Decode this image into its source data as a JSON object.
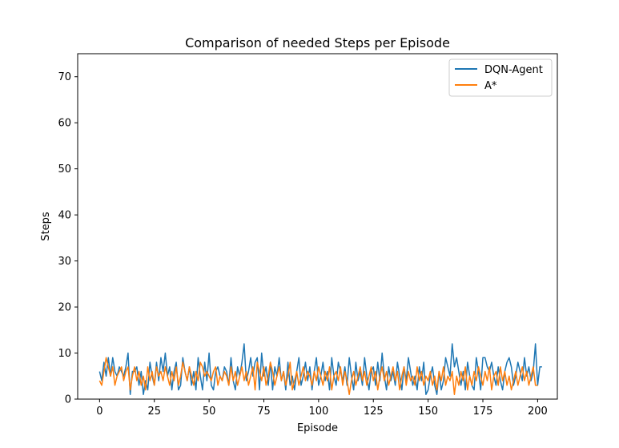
{
  "chart_data": {
    "type": "line",
    "title": "Comparison of needed Steps per Episode",
    "xlabel": "Episode",
    "ylabel": "Steps",
    "xlim": [
      -10,
      209
    ],
    "ylim": [
      0,
      75
    ],
    "xticks": [
      0,
      25,
      50,
      75,
      100,
      125,
      150,
      175,
      200
    ],
    "yticks": [
      0,
      10,
      20,
      30,
      40,
      50,
      60,
      70
    ],
    "xtick_labels": [
      "0",
      "25",
      "50",
      "75",
      "100",
      "125",
      "150",
      "175",
      "200"
    ],
    "ytick_labels": [
      "0",
      "10",
      "20",
      "30",
      "40",
      "50",
      "60",
      "70"
    ],
    "legend_position": "upper right",
    "grid": false,
    "series": [
      {
        "name": "DQN-Agent",
        "color": "#1f77b4",
        "values": [
          6,
          4,
          8,
          5,
          9,
          5,
          9,
          6,
          5,
          7,
          6,
          5,
          7,
          10,
          1,
          6,
          6,
          7,
          3,
          6,
          1,
          4,
          2,
          8,
          5,
          3,
          8,
          4,
          9,
          6,
          10,
          5,
          7,
          2,
          6,
          8,
          2,
          3,
          9,
          6,
          4,
          7,
          3,
          6,
          2,
          9,
          5,
          2,
          8,
          4,
          10,
          3,
          2,
          6,
          7,
          5,
          4,
          7,
          6,
          3,
          9,
          4,
          2,
          7,
          5,
          8,
          12,
          4,
          6,
          9,
          5,
          8,
          9,
          2,
          10,
          5,
          7,
          3,
          8,
          2,
          7,
          5,
          9,
          4,
          6,
          2,
          8,
          3,
          5,
          2,
          6,
          9,
          3,
          5,
          8,
          4,
          7,
          2,
          6,
          9,
          3,
          5,
          8,
          4,
          6,
          2,
          9,
          5,
          3,
          8,
          6,
          4,
          7,
          3,
          9,
          5,
          2,
          8,
          4,
          6,
          3,
          9,
          5,
          2,
          6,
          7,
          3,
          8,
          4,
          10,
          5,
          2,
          7,
          4,
          6,
          3,
          8,
          5,
          2,
          7,
          4,
          9,
          6,
          3,
          5,
          2,
          7,
          4,
          8,
          1,
          2,
          5,
          7,
          3,
          1,
          6,
          2,
          4,
          9,
          7,
          5,
          12,
          7,
          9,
          6,
          3,
          6,
          2,
          8,
          5,
          3,
          2,
          9,
          6,
          2,
          9,
          9,
          7,
          6,
          8,
          5,
          3,
          7,
          4,
          2,
          6,
          8,
          9,
          7,
          3,
          5,
          8,
          6,
          4,
          9,
          5,
          7,
          4,
          6,
          12,
          3,
          7,
          7
        ]
      },
      {
        "name": "A*",
        "color": "#ff7f0e",
        "values": [
          4,
          3,
          6,
          9,
          7,
          5,
          7,
          3,
          5,
          6,
          7,
          4,
          6,
          7,
          2,
          5,
          7,
          4,
          6,
          3,
          5,
          2,
          7,
          4,
          6,
          3,
          7,
          5,
          6,
          4,
          7,
          5,
          3,
          6,
          4,
          7,
          3,
          5,
          8,
          6,
          4,
          7,
          5,
          3,
          6,
          4,
          8,
          7,
          5,
          6,
          5,
          4,
          6,
          7,
          3,
          5,
          4,
          6,
          5,
          3,
          7,
          4,
          6,
          3,
          5,
          7,
          4,
          6,
          3,
          5,
          7,
          2,
          8,
          6,
          4,
          7,
          3,
          5,
          8,
          6,
          3,
          5,
          7,
          4,
          6,
          3,
          5,
          8,
          2,
          4,
          6,
          3,
          5,
          7,
          4,
          6,
          5,
          3,
          6,
          4,
          7,
          5,
          3,
          6,
          4,
          7,
          2,
          5,
          6,
          4,
          7,
          3,
          6,
          4,
          1,
          4,
          6,
          3,
          5,
          7,
          4,
          6,
          3,
          5,
          7,
          4,
          6,
          2,
          5,
          7,
          4,
          6,
          3,
          5,
          7,
          4,
          6,
          2,
          5,
          7,
          3,
          6,
          4,
          5,
          3,
          7,
          4,
          6,
          3,
          5,
          4,
          6,
          3,
          5,
          2,
          6,
          4,
          7,
          3,
          5,
          4,
          6,
          1,
          5,
          3,
          6,
          4,
          7,
          2,
          5,
          3,
          6,
          4,
          7,
          5,
          3,
          6,
          4,
          7,
          2,
          5,
          6,
          3,
          7,
          4,
          6,
          3,
          5,
          2,
          4,
          6,
          3,
          5,
          7,
          4,
          6,
          3,
          5,
          7,
          3,
          3
        ]
      }
    ]
  }
}
